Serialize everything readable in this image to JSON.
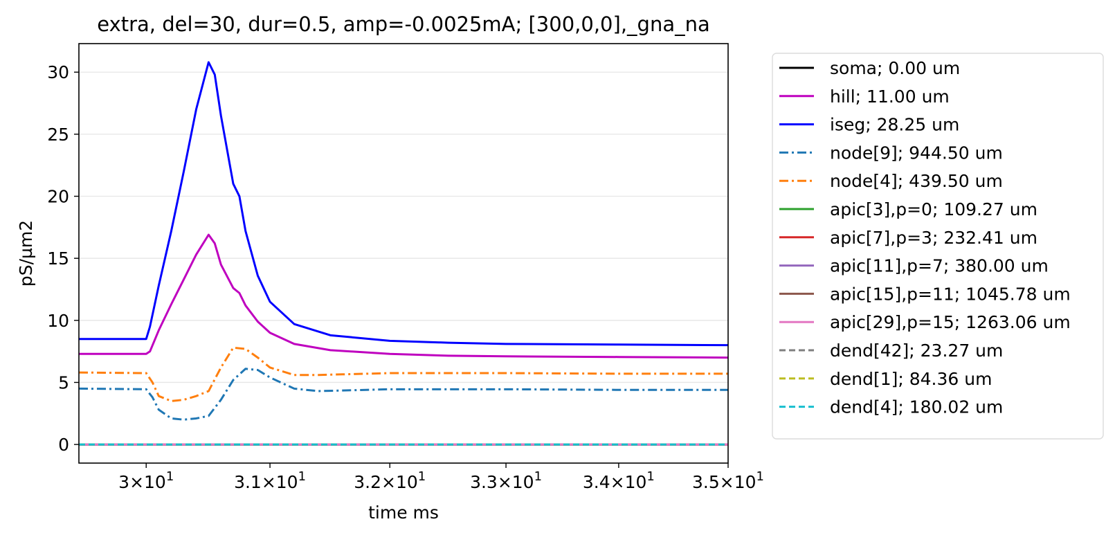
{
  "chart_data": {
    "type": "line",
    "title": "extra, del=30, dur=0.5, amp=-0.0025mA; [300,0,0],_gna_na",
    "xlabel": "time ms",
    "ylabel": "pS/µm2",
    "xlim": [
      29.47,
      35.0
    ],
    "ylim": [
      -1.5,
      32.3
    ],
    "x_scale": "log",
    "y_grid": true,
    "legend_position": "outside-right",
    "x_ticks": [
      {
        "value": 30,
        "mantissa": "3",
        "exp": "1"
      },
      {
        "value": 31,
        "mantissa": "3.1",
        "exp": "1"
      },
      {
        "value": 32,
        "mantissa": "3.2",
        "exp": "1"
      },
      {
        "value": 33,
        "mantissa": "3.3",
        "exp": "1"
      },
      {
        "value": 34,
        "mantissa": "3.4",
        "exp": "1"
      },
      {
        "value": 35,
        "mantissa": "3.5",
        "exp": "1"
      }
    ],
    "y_ticks": [
      0,
      5,
      10,
      15,
      20,
      25,
      30
    ],
    "series": [
      {
        "name": "soma; 0.00 um",
        "color": "#000000",
        "dash": "solid",
        "x": [
          29.47,
          35.0
        ],
        "y": [
          0,
          0
        ]
      },
      {
        "name": "hill; 11.00 um",
        "color": "#bf00bf",
        "dash": "solid",
        "x": [
          29.47,
          30.0,
          30.03,
          30.1,
          30.2,
          30.3,
          30.4,
          30.5,
          30.55,
          30.6,
          30.7,
          30.75,
          30.8,
          30.9,
          31.0,
          31.2,
          31.5,
          32.0,
          32.5,
          33.0,
          34.0,
          35.0
        ],
        "y": [
          7.3,
          7.3,
          7.5,
          9.2,
          11.3,
          13.3,
          15.3,
          16.9,
          16.2,
          14.5,
          12.6,
          12.2,
          11.2,
          9.9,
          9.0,
          8.1,
          7.6,
          7.3,
          7.15,
          7.1,
          7.05,
          7.0
        ]
      },
      {
        "name": "iseg; 28.25 um",
        "color": "#0000ff",
        "dash": "solid",
        "x": [
          29.47,
          30.0,
          30.03,
          30.1,
          30.2,
          30.3,
          30.4,
          30.5,
          30.55,
          30.6,
          30.7,
          30.75,
          30.8,
          30.9,
          31.0,
          31.2,
          31.5,
          32.0,
          32.5,
          33.0,
          34.0,
          35.0
        ],
        "y": [
          8.5,
          8.5,
          9.5,
          12.8,
          17.2,
          22.0,
          27.0,
          30.8,
          29.8,
          26.5,
          21.0,
          20.0,
          17.2,
          13.6,
          11.5,
          9.7,
          8.8,
          8.35,
          8.2,
          8.1,
          8.05,
          8.0
        ]
      },
      {
        "name": "node[9]; 944.50 um",
        "color": "#1f77b4",
        "dash": "dashdot",
        "x": [
          29.47,
          30.0,
          30.05,
          30.1,
          30.2,
          30.3,
          30.4,
          30.5,
          30.6,
          30.7,
          30.8,
          30.9,
          31.0,
          31.2,
          31.4,
          31.6,
          31.8,
          32.0,
          33.0,
          34.0,
          35.0
        ],
        "y": [
          4.5,
          4.45,
          3.8,
          2.8,
          2.1,
          2.0,
          2.1,
          2.3,
          3.6,
          5.2,
          6.1,
          6.0,
          5.4,
          4.5,
          4.3,
          4.35,
          4.4,
          4.45,
          4.45,
          4.4,
          4.4
        ]
      },
      {
        "name": "node[4]; 439.50 um",
        "color": "#ff7f0e",
        "dash": "dashdot",
        "x": [
          29.47,
          30.0,
          30.05,
          30.1,
          30.2,
          30.3,
          30.4,
          30.5,
          30.6,
          30.7,
          30.8,
          30.9,
          31.0,
          31.2,
          31.4,
          31.6,
          31.8,
          32.0,
          33.0,
          34.0,
          35.0
        ],
        "y": [
          5.8,
          5.75,
          5.0,
          3.9,
          3.5,
          3.6,
          3.9,
          4.3,
          6.2,
          7.8,
          7.7,
          7.0,
          6.2,
          5.6,
          5.6,
          5.65,
          5.7,
          5.75,
          5.75,
          5.7,
          5.7
        ]
      },
      {
        "name": "apic[3],p=0; 109.27 um",
        "color": "#2ca02c",
        "dash": "solid",
        "x": [
          29.47,
          35.0
        ],
        "y": [
          0,
          0
        ]
      },
      {
        "name": "apic[7],p=3; 232.41 um",
        "color": "#d62728",
        "dash": "solid",
        "x": [
          29.47,
          35.0
        ],
        "y": [
          0,
          0
        ]
      },
      {
        "name": "apic[11],p=7; 380.00 um",
        "color": "#9467bd",
        "dash": "solid",
        "x": [
          29.47,
          35.0
        ],
        "y": [
          0,
          0
        ]
      },
      {
        "name": "apic[15],p=11; 1045.78 um",
        "color": "#8c564b",
        "dash": "solid",
        "x": [
          29.47,
          35.0
        ],
        "y": [
          0,
          0
        ]
      },
      {
        "name": "apic[29],p=15; 1263.06 um",
        "color": "#e377c2",
        "dash": "solid",
        "x": [
          29.47,
          35.0
        ],
        "y": [
          0,
          0
        ]
      },
      {
        "name": "dend[42]; 23.27 um",
        "color": "#7f7f7f",
        "dash": "dashed",
        "x": [
          29.47,
          35.0
        ],
        "y": [
          0,
          0
        ]
      },
      {
        "name": "dend[1]; 84.36 um",
        "color": "#bcbd22",
        "dash": "dashed",
        "x": [
          29.47,
          35.0
        ],
        "y": [
          0,
          0
        ]
      },
      {
        "name": "dend[4]; 180.02 um",
        "color": "#17becf",
        "dash": "dashed",
        "x": [
          29.47,
          35.0
        ],
        "y": [
          0,
          0
        ]
      }
    ]
  }
}
